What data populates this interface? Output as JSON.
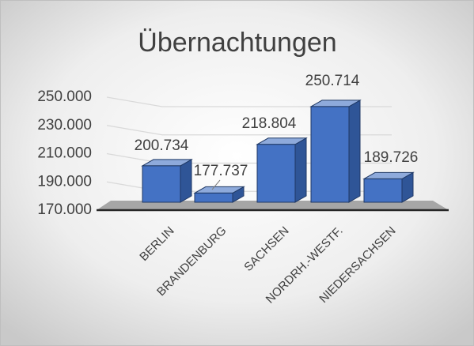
{
  "chart_data": {
    "type": "bar3d",
    "title": "Übernachtungen",
    "categories": [
      "BERLIN",
      "BRANDENBURG",
      "SACHSEN",
      "NORDRH.-WESTF.",
      "NIEDERSACHSEN"
    ],
    "values": [
      200734,
      177737,
      218804,
      250714,
      189726
    ],
    "value_labels": [
      "200.734",
      "177.737",
      "218.804",
      "250.714",
      "189.726"
    ],
    "color": "#4472c4",
    "ylim": [
      170000,
      250000
    ],
    "yticks": [
      {
        "value": 170000,
        "label": "170.000"
      },
      {
        "value": 190000,
        "label": "190.000"
      },
      {
        "value": 210000,
        "label": "210.000"
      },
      {
        "value": 230000,
        "label": "230.000"
      },
      {
        "value": 250000,
        "label": "250.000"
      }
    ],
    "grid": true
  }
}
